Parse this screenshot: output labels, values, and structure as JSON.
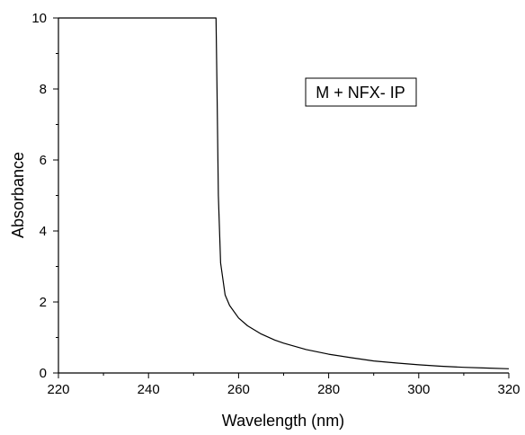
{
  "chart_data": {
    "type": "line",
    "xlabel": "Wavelength (nm)",
    "ylabel": "Absorbance",
    "xlim": [
      220,
      320
    ],
    "ylim": [
      0,
      10
    ],
    "x_ticks": [
      "220",
      "240",
      "260",
      "280",
      "300",
      "320"
    ],
    "y_ticks": [
      "0",
      "2",
      "4",
      "6",
      "8",
      "10"
    ],
    "grid": false,
    "legend_position": "top-right",
    "series": [
      {
        "name": "M + NFX- IP",
        "color": "#000000",
        "x": [
          220,
          250,
          255,
          255.2,
          255.5,
          256,
          257,
          258,
          260,
          262,
          265,
          268,
          270,
          275,
          280,
          285,
          290,
          295,
          300,
          305,
          310,
          315,
          320
        ],
        "y": [
          10,
          10,
          10,
          8,
          5,
          3.1,
          2.2,
          1.9,
          1.55,
          1.33,
          1.1,
          0.93,
          0.84,
          0.66,
          0.53,
          0.43,
          0.34,
          0.28,
          0.23,
          0.19,
          0.16,
          0.14,
          0.12
        ]
      }
    ]
  }
}
